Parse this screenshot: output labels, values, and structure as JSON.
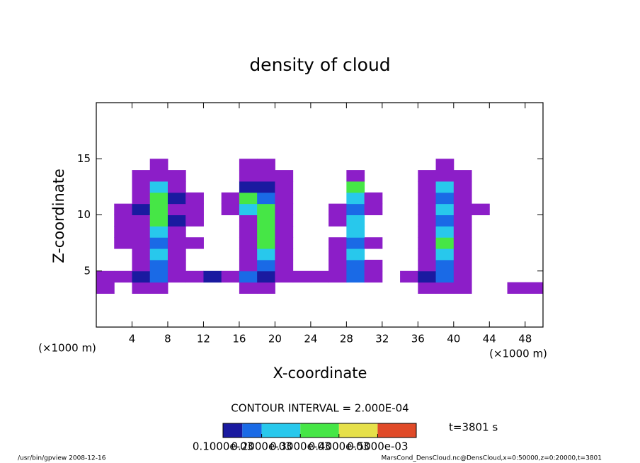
{
  "chart_data": {
    "type": "heatmap",
    "title": "density of cloud",
    "xlabel": "X-coordinate",
    "ylabel": "Z-coordinate",
    "x_unit": "(×1000 m)",
    "y_unit": "(×1000 m)",
    "contour_interval": "CONTOUR INTERVAL = 2.000E-04",
    "time_label": "t=3801 s",
    "footer_left": "/usr/bin/gpview   2008-12-16",
    "footer_right": "MarsCond_DensCloud.nc@DensCloud,x=0:50000,z=0:20000,t=3801",
    "xlim": [
      0,
      50
    ],
    "ylim": [
      0,
      20
    ],
    "xticks": [
      4,
      8,
      12,
      16,
      20,
      24,
      28,
      32,
      36,
      40,
      44,
      48
    ],
    "yticks": [
      5,
      10,
      15
    ],
    "x": [
      1,
      3,
      5,
      7,
      9,
      11,
      13,
      15,
      17,
      19,
      21,
      23,
      25,
      27,
      29,
      31,
      33,
      35,
      37,
      39,
      41,
      43,
      45,
      47,
      49
    ],
    "y": [
      3.5,
      4.5,
      5.5,
      6.5,
      7.5,
      8.5,
      9.5,
      10.5,
      11.5,
      12.5,
      13.5,
      14.5
    ],
    "values": [
      [
        5e-05,
        0,
        5e-05,
        5e-05,
        0,
        0,
        0,
        0,
        5e-05,
        5e-05,
        0,
        0,
        0,
        0,
        0,
        0,
        0,
        0,
        5e-05,
        5e-05,
        5e-05,
        0,
        0,
        5e-05,
        5e-05
      ],
      [
        5e-05,
        5e-05,
        0.00012,
        0.00018,
        5e-05,
        5e-05,
        0.00012,
        5e-05,
        0.00018,
        0.00012,
        5e-05,
        5e-05,
        5e-05,
        5e-05,
        0.00018,
        5e-05,
        0,
        5e-05,
        0.00012,
        0.00018,
        5e-05,
        0,
        0,
        0,
        0
      ],
      [
        0,
        0,
        5e-05,
        0.00018,
        5e-05,
        0,
        0,
        0,
        5e-05,
        0.00018,
        5e-05,
        0,
        0,
        5e-05,
        0.00018,
        5e-05,
        0,
        0,
        5e-05,
        0.00018,
        5e-05,
        0,
        0,
        0,
        0
      ],
      [
        0,
        0,
        5e-05,
        0.00025,
        5e-05,
        0,
        0,
        0,
        5e-05,
        0.00025,
        5e-05,
        0,
        0,
        5e-05,
        0.00025,
        0,
        0,
        0,
        5e-05,
        0.00025,
        5e-05,
        0,
        0,
        0,
        0
      ],
      [
        0,
        5e-05,
        5e-05,
        0.00018,
        5e-05,
        5e-05,
        0,
        0,
        5e-05,
        0.00032,
        5e-05,
        0,
        0,
        5e-05,
        0.00018,
        5e-05,
        0,
        0,
        5e-05,
        0.00032,
        5e-05,
        0,
        0,
        0,
        0
      ],
      [
        0,
        5e-05,
        5e-05,
        0.00025,
        5e-05,
        0,
        0,
        0,
        5e-05,
        0.00032,
        5e-05,
        0,
        0,
        0,
        0.00025,
        0,
        0,
        0,
        5e-05,
        0.00025,
        5e-05,
        0,
        0,
        0,
        0
      ],
      [
        0,
        5e-05,
        5e-05,
        0.00032,
        0.00012,
        5e-05,
        0,
        0,
        5e-05,
        0.00032,
        5e-05,
        0,
        0,
        5e-05,
        0.00025,
        0,
        0,
        0,
        5e-05,
        0.00018,
        5e-05,
        0,
        0,
        0,
        0
      ],
      [
        0,
        5e-05,
        0.00012,
        0.00032,
        5e-05,
        5e-05,
        0,
        5e-05,
        0.00025,
        0.00032,
        5e-05,
        0,
        0,
        5e-05,
        0.00018,
        5e-05,
        0,
        0,
        5e-05,
        0.00025,
        5e-05,
        5e-05,
        0,
        0,
        0
      ],
      [
        0,
        0,
        5e-05,
        0.00032,
        0.00012,
        5e-05,
        0,
        5e-05,
        0.00032,
        0.00018,
        5e-05,
        0,
        0,
        0,
        0.00025,
        5e-05,
        0,
        0,
        5e-05,
        0.00018,
        5e-05,
        0,
        0,
        0,
        0
      ],
      [
        0,
        0,
        5e-05,
        0.00025,
        5e-05,
        0,
        0,
        0,
        0.00012,
        0.00012,
        5e-05,
        0,
        0,
        0,
        0.00032,
        0,
        0,
        0,
        5e-05,
        0.00025,
        5e-05,
        0,
        0,
        0,
        0
      ],
      [
        0,
        0,
        5e-05,
        5e-05,
        5e-05,
        0,
        0,
        0,
        5e-05,
        5e-05,
        5e-05,
        0,
        0,
        0,
        5e-05,
        0,
        0,
        0,
        5e-05,
        5e-05,
        5e-05,
        0,
        0,
        0,
        0
      ],
      [
        0,
        0,
        0,
        5e-05,
        0,
        0,
        0,
        0,
        5e-05,
        5e-05,
        0,
        0,
        0,
        0,
        0,
        0,
        0,
        0,
        0,
        5e-05,
        0,
        0,
        0,
        0,
        0
      ]
    ],
    "levels": [
      1e-05,
      0.0001,
      0.00015,
      0.0002,
      0.0003,
      0.0004,
      0.0005,
      0.0006
    ],
    "colors": [
      "#8c1ec8",
      "#1a1aa0",
      "#1a6ae6",
      "#28c8ec",
      "#46e646",
      "#e6e04a",
      "#e04a28"
    ],
    "clim": [
      0.0001,
      0.0006
    ],
    "cticks": [
      {
        "value": 0.0001,
        "label": "0.1000e-03"
      },
      {
        "value": 0.0002,
        "label": "0.2000e-03"
      },
      {
        "value": 0.0003,
        "label": "0.3000e-03"
      },
      {
        "value": 0.0004,
        "label": "0.4000e-03"
      },
      {
        "value": 0.0005,
        "label": "0.5000e-03"
      }
    ]
  }
}
